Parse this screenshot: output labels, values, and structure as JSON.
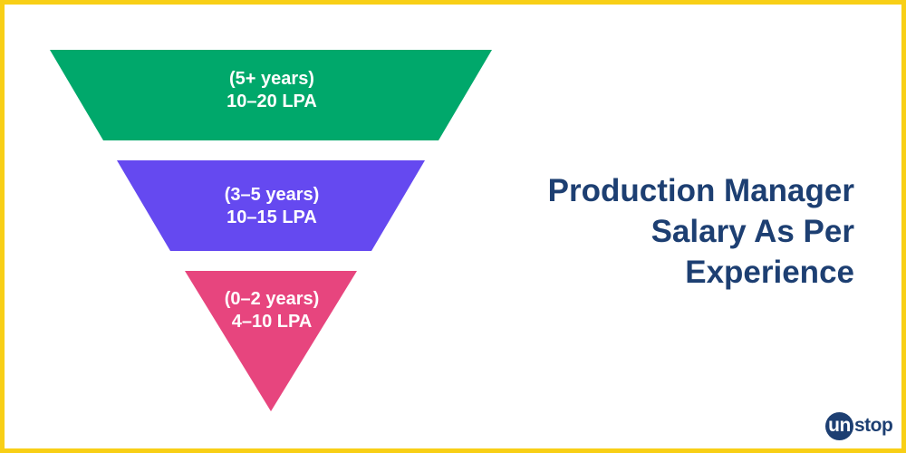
{
  "tiers": [
    {
      "years": "(5+ years)",
      "salary": "10–20 LPA",
      "color": "#00a86b"
    },
    {
      "years": "(3–5 years)",
      "salary": "10–15 LPA",
      "color": "#6549f0"
    },
    {
      "years": "(0–2 years)",
      "salary": "4–10 LPA",
      "color": "#e7457e"
    }
  ],
  "heading": {
    "line1": "Production Manager",
    "line2": "Salary As Per",
    "line3": "Experience",
    "color": "#1d3f72"
  },
  "brand": {
    "badge": "un",
    "rest": "stop"
  },
  "frame_color": "#f8cf16"
}
